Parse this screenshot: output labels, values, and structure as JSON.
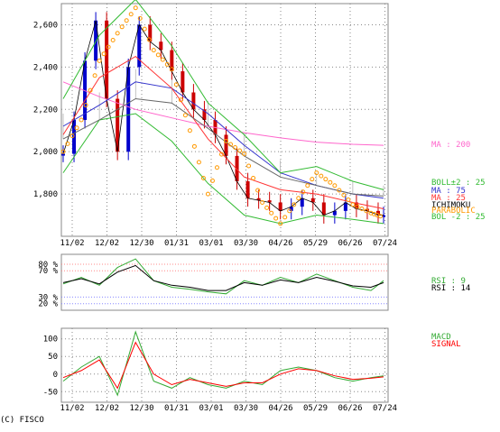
{
  "copyright": "(C) FISCO",
  "colors": {
    "price_up": "#0000cc",
    "price_down": "#cc0000",
    "ma200": "#ff66cc",
    "bollinger": "#33bb33",
    "parabolic": "#ff9900",
    "ichimoku_cloud": "#999999",
    "rsi9": "#33aa33",
    "rsi14": "#000000",
    "macd": "#33aa33",
    "signal": "#ff0000",
    "grid": "#888888",
    "rsi_band": "#ff8888"
  },
  "chart_data": [
    {
      "type": "line",
      "panel": "price",
      "x_ticks": [
        "11/02",
        "12/02",
        "12/30",
        "01/31",
        "03/01",
        "03/30",
        "04/26",
        "05/29",
        "06/26",
        "07/24"
      ],
      "y_ticks": [
        1800,
        2000,
        2200,
        2400,
        2600
      ],
      "y_tick_labels": [
        "1,800",
        "2,000",
        "2,200",
        "2,400",
        "2,600"
      ],
      "ylim": [
        1600,
        2700
      ],
      "grid": true,
      "legend_labels": [
        "MA : 200",
        "BOLL±2 : 25",
        "MA : 75",
        "MA : 25",
        "ICHIMOKU",
        "PARABOLIC",
        "BOL -2 : 25"
      ],
      "series": [
        {
          "name": "MA : 200",
          "x": [
            0,
            20,
            40,
            60,
            80,
            100,
            120,
            140,
            160,
            177
          ],
          "y": [
            2330,
            2260,
            2200,
            2160,
            2120,
            2090,
            2065,
            2045,
            2035,
            2030
          ]
        },
        {
          "name": "MA : 75",
          "x": [
            0,
            20,
            40,
            60,
            80,
            100,
            120,
            140,
            160,
            177
          ],
          "y": [
            2120,
            2220,
            2330,
            2300,
            2180,
            2030,
            1900,
            1840,
            1800,
            1780
          ]
        },
        {
          "name": "MA : 25",
          "x": [
            0,
            20,
            40,
            60,
            80,
            100,
            120,
            140,
            160,
            177
          ],
          "y": [
            2080,
            2350,
            2450,
            2300,
            2060,
            1880,
            1820,
            1800,
            1760,
            1730
          ]
        },
        {
          "name": "BOLL±2 : 25",
          "x": [
            0,
            20,
            40,
            60,
            80,
            100,
            120,
            140,
            160,
            177
          ],
          "y": [
            2250,
            2550,
            2720,
            2500,
            2230,
            2080,
            1900,
            1930,
            1860,
            1820
          ]
        },
        {
          "name": "BOL -2 : 25",
          "x": [
            0,
            20,
            40,
            60,
            80,
            100,
            120,
            140,
            160,
            177
          ],
          "y": [
            1900,
            2150,
            2180,
            2050,
            1850,
            1700,
            1660,
            1700,
            1680,
            1660
          ]
        },
        {
          "name": "ICHIMOKU",
          "x": [
            0,
            20,
            40,
            60,
            80,
            100,
            120,
            140,
            160,
            177
          ],
          "y": [
            2060,
            2150,
            2250,
            2230,
            2110,
            1980,
            1880,
            1840,
            1800,
            1790
          ]
        },
        {
          "name": "PARABOLIC",
          "x": [
            0,
            10,
            20,
            30,
            40,
            50,
            60,
            70,
            80,
            90,
            100,
            110,
            120,
            130,
            140,
            150,
            160,
            170,
            177
          ],
          "y": [
            2000,
            2150,
            2430,
            2560,
            2680,
            2480,
            2390,
            2100,
            1800,
            2050,
            1990,
            1760,
            1660,
            1780,
            1900,
            1840,
            1750,
            1710,
            1690
          ]
        }
      ],
      "price": {
        "x": [
          0,
          6,
          12,
          18,
          24,
          30,
          36,
          42,
          48,
          54,
          60,
          66,
          72,
          78,
          84,
          90,
          96,
          102,
          108,
          114,
          120,
          126,
          132,
          138,
          144,
          150,
          156,
          162,
          168,
          174,
          177
        ],
        "y": [
          1990,
          2150,
          2430,
          2620,
          2250,
          2000,
          2400,
          2600,
          2520,
          2480,
          2380,
          2280,
          2200,
          2150,
          2080,
          1980,
          1860,
          1780,
          1770,
          1760,
          1720,
          1740,
          1780,
          1760,
          1700,
          1720,
          1760,
          1730,
          1720,
          1700,
          1700
        ]
      }
    },
    {
      "type": "line",
      "panel": "rsi",
      "y_tick_labels": [
        "80 %",
        "70 %",
        "30 %",
        "20 %"
      ],
      "y_ticks": [
        80,
        70,
        30,
        20
      ],
      "ylim": [
        10,
        95
      ],
      "series": [
        {
          "name": "RSI : 9",
          "x": [
            0,
            10,
            20,
            30,
            40,
            50,
            60,
            70,
            80,
            90,
            100,
            110,
            120,
            130,
            140,
            150,
            160,
            170,
            177
          ],
          "y": [
            50,
            60,
            48,
            75,
            88,
            55,
            45,
            42,
            38,
            35,
            55,
            48,
            60,
            52,
            65,
            55,
            45,
            40,
            55
          ]
        },
        {
          "name": "RSI : 14",
          "x": [
            0,
            10,
            20,
            30,
            40,
            50,
            60,
            70,
            80,
            90,
            100,
            110,
            120,
            130,
            140,
            150,
            160,
            170,
            177
          ],
          "y": [
            52,
            58,
            50,
            68,
            78,
            55,
            48,
            45,
            40,
            40,
            52,
            48,
            56,
            52,
            60,
            54,
            47,
            45,
            52
          ]
        }
      ]
    },
    {
      "type": "line",
      "panel": "macd",
      "y_ticks": [
        100,
        50,
        0,
        -50
      ],
      "y_tick_labels": [
        "100",
        "50",
        "0",
        "-50"
      ],
      "ylim": [
        -80,
        130
      ],
      "x_ticks": [
        "11/02",
        "12/02",
        "12/30",
        "01/31",
        "03/01",
        "03/30",
        "04/26",
        "05/29",
        "06/26",
        "07/24"
      ],
      "series": [
        {
          "name": "MACD",
          "x": [
            0,
            10,
            20,
            30,
            40,
            50,
            60,
            70,
            80,
            90,
            100,
            110,
            120,
            130,
            140,
            150,
            160,
            170,
            177
          ],
          "y": [
            -20,
            20,
            50,
            -60,
            120,
            -20,
            -40,
            -10,
            -30,
            -40,
            -20,
            -30,
            10,
            20,
            10,
            -10,
            -20,
            -10,
            -5
          ]
        },
        {
          "name": "SIGNAL",
          "x": [
            0,
            10,
            20,
            30,
            40,
            50,
            60,
            70,
            80,
            90,
            100,
            110,
            120,
            130,
            140,
            150,
            160,
            170,
            177
          ],
          "y": [
            -10,
            10,
            40,
            -40,
            90,
            0,
            -30,
            -15,
            -25,
            -35,
            -25,
            -25,
            0,
            15,
            10,
            -5,
            -15,
            -12,
            -8
          ]
        }
      ]
    }
  ]
}
